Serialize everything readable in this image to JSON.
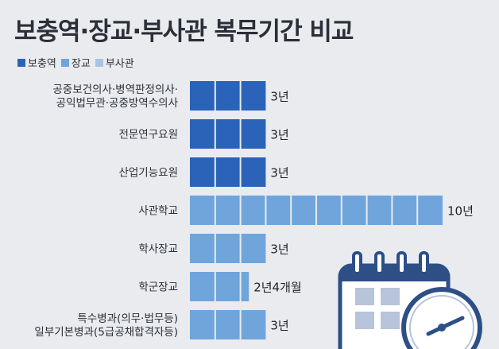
{
  "title": "보충역·장교·부사관 복무기간 비교",
  "legend": [
    {
      "label": "보충역",
      "color": "#2a63b8"
    },
    {
      "label": "장교",
      "color": "#6fa5db"
    },
    {
      "label": "부사관",
      "color": "#a9c3e4"
    }
  ],
  "chart_data": {
    "type": "bar",
    "orientation": "horizontal",
    "unit": "년",
    "categories": [
      [
        "공중보건의사·병역판정의사·",
        "공익법무관·공중방역수의사"
      ],
      [
        "전문연구요원"
      ],
      [
        "산업기능요원"
      ],
      [
        "사관학교"
      ],
      [
        "학사장교"
      ],
      [
        "학군장교"
      ],
      [
        "특수병과(의무·법무등)",
        "일부기본병과(5급공채합격자등)"
      ]
    ],
    "values": [
      3,
      3,
      3,
      10,
      3,
      2.333,
      3
    ],
    "value_labels": [
      "3년",
      "3년",
      "3년",
      "10년",
      "3년",
      "2년4개월",
      "3년"
    ],
    "groups": [
      "보충역",
      "보충역",
      "보충역",
      "장교",
      "장교",
      "장교",
      "장교"
    ],
    "xlim": [
      0,
      10
    ]
  },
  "icon": "calendar-clock-icon"
}
